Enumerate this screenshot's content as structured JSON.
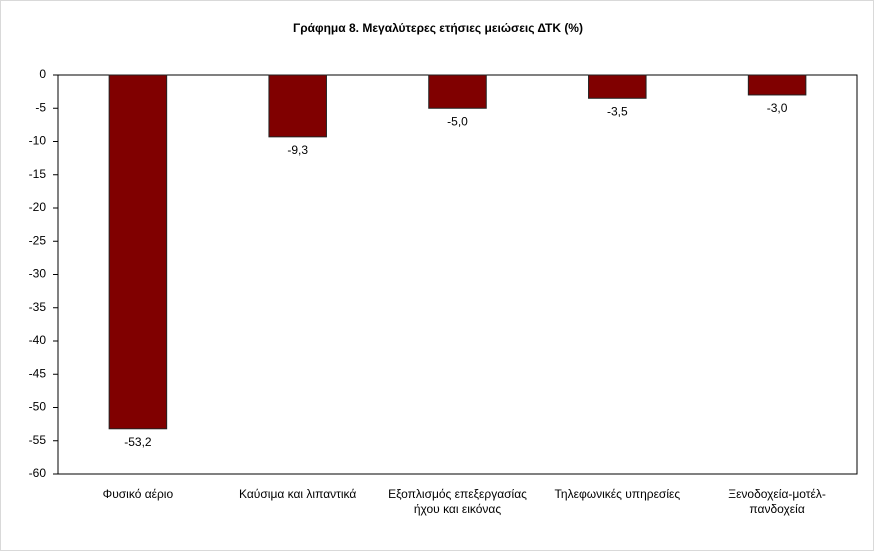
{
  "chart_data": {
    "type": "bar",
    "title": "Γράφημα 8. Μεγαλύτερες ετήσιες μειώσεις ΔΤΚ (%)",
    "categories": [
      "Φυσικό αέριο",
      "Καύσιμα και λιπαντικά",
      "Εξοπλισμός επεξεργασίας ήχου και εικόνας",
      "Τηλεφωνικές υπηρεσίες",
      "Ξενοδοχεία-μοτέλ-πανδοχεία"
    ],
    "values": [
      -53.2,
      -9.3,
      -5.0,
      -3.5,
      -3.0
    ],
    "value_labels": [
      "-53,2",
      "-9,3",
      "-5,0",
      "-3,5",
      "-3,0"
    ],
    "color": "#800000",
    "ylim": [
      -60,
      0
    ],
    "yticks": [
      0,
      -5,
      -10,
      -15,
      -20,
      -25,
      -30,
      -35,
      -40,
      -45,
      -50,
      -55,
      -60
    ],
    "grid": false
  }
}
